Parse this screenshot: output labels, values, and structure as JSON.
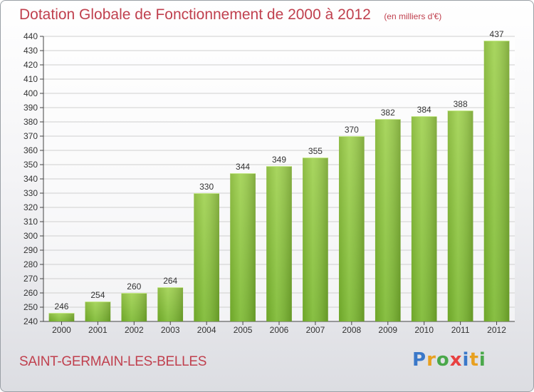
{
  "chart_data": {
    "type": "bar",
    "title": "Dotation Globale de Fonctionnement de 2000 à 2012",
    "unit_note": "(en milliers d'€)",
    "categories": [
      "2000",
      "2001",
      "2002",
      "2003",
      "2004",
      "2005",
      "2006",
      "2007",
      "2008",
      "2009",
      "2010",
      "2011",
      "2012"
    ],
    "values": [
      246,
      254,
      260,
      264,
      330,
      344,
      349,
      355,
      370,
      382,
      384,
      388,
      437
    ],
    "xlabel": "",
    "ylabel": "",
    "ylim": [
      240,
      440
    ],
    "ytick_step": 10,
    "grid": true,
    "bar_color": "#7ab82e",
    "bar_color_light": "#9fd14e",
    "grid_color": "#cfcfcf"
  },
  "footer": {
    "commune": "SAINT-GERMAIN-LES-BELLES",
    "brand_logo_text": "Proxiti"
  },
  "colors": {
    "accent": "#c0404e"
  }
}
